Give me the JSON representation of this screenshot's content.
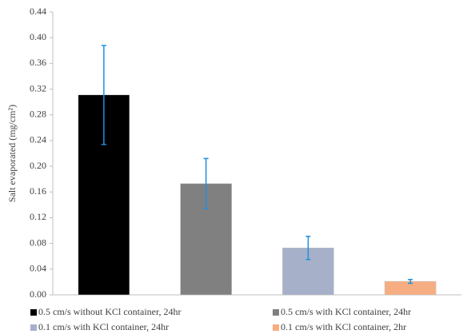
{
  "chart_data": {
    "type": "bar",
    "y_label": "Salt evaporated (mg/cm²)",
    "series": [
      {
        "name": "0.5 cm/s without KCl container, 24hr",
        "color": "#000000",
        "values": [
          0.311
        ],
        "errors": [
          0.077
        ]
      },
      {
        "name": "0.5 cm/s with KCl container, 24hr",
        "color": "#808080",
        "values": [
          0.173
        ],
        "errors": [
          0.039
        ]
      },
      {
        "name": "0.1 cm/s with KCl container, 24hr",
        "color": "#a6b1c9",
        "values": [
          0.073
        ],
        "errors": [
          0.018
        ]
      },
      {
        "name": "0.1 cm/s with KCl container, 2hr",
        "color": "#f7ad82",
        "values": [
          0.021
        ],
        "errors": [
          0.003
        ]
      }
    ],
    "error_color": "#1f8fdf",
    "ylim": [
      0,
      0.44
    ],
    "yticks": [
      {
        "value": 0,
        "label": "0.00"
      },
      {
        "value": 0.04,
        "label": "0.04"
      },
      {
        "value": 0.08,
        "label": "0.08"
      },
      {
        "value": 0.12,
        "label": "0.12"
      },
      {
        "value": 0.16,
        "label": "0.16"
      },
      {
        "value": 0.2,
        "label": "0.20"
      },
      {
        "value": 0.24,
        "label": "0.24"
      },
      {
        "value": 0.28,
        "label": "0.28"
      },
      {
        "value": 0.32,
        "label": "0.32"
      },
      {
        "value": 0.36,
        "label": "0.36"
      },
      {
        "value": 0.4,
        "label": "0.40"
      },
      {
        "value": 0.44,
        "label": "0.44"
      }
    ],
    "grid": false
  }
}
